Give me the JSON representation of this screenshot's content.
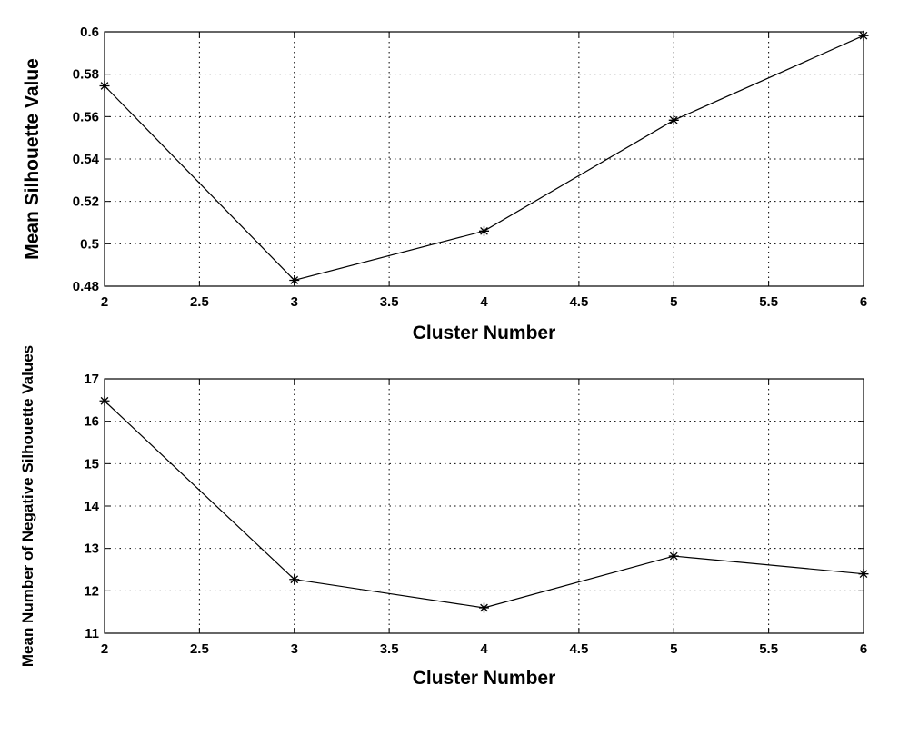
{
  "chart_data": [
    {
      "type": "line",
      "title": "",
      "xlabel": "Cluster Number",
      "ylabel": "Mean Silhouette Value",
      "xlim": [
        2,
        6
      ],
      "ylim": [
        0.48,
        0.6
      ],
      "xticks": [
        2,
        2.5,
        3,
        3.5,
        4,
        4.5,
        5,
        5.5,
        6
      ],
      "xtick_labels": [
        "2",
        "2.5",
        "3",
        "3.5",
        "4",
        "4.5",
        "5",
        "5.5",
        "6"
      ],
      "yticks": [
        0.48,
        0.5,
        0.52,
        0.54,
        0.56,
        0.58,
        0.6
      ],
      "ytick_labels": [
        "0.48",
        "0.5",
        "0.52",
        "0.54",
        "0.56",
        "0.58",
        "0.6"
      ],
      "grid": true,
      "marker": "asterisk",
      "series": [
        {
          "x": [
            2,
            3,
            4,
            5,
            6
          ],
          "values": [
            0.5745,
            0.4828,
            0.506,
            0.5583,
            0.5982
          ]
        }
      ]
    },
    {
      "type": "line",
      "title": "",
      "xlabel": "Cluster Number",
      "ylabel": "Mean Number of Negative Silhouette Values",
      "xlim": [
        2,
        6
      ],
      "ylim": [
        11,
        17
      ],
      "xticks": [
        2,
        2.5,
        3,
        3.5,
        4,
        4.5,
        5,
        5.5,
        6
      ],
      "xtick_labels": [
        "2",
        "2.5",
        "3",
        "3.5",
        "4",
        "4.5",
        "5",
        "5.5",
        "6"
      ],
      "yticks": [
        11,
        12,
        13,
        14,
        15,
        16,
        17
      ],
      "ytick_labels": [
        "11",
        "12",
        "13",
        "14",
        "15",
        "16",
        "17"
      ],
      "grid": true,
      "marker": "asterisk",
      "series": [
        {
          "x": [
            2,
            3,
            4,
            5,
            6
          ],
          "values": [
            16.48,
            12.27,
            11.6,
            12.82,
            12.4
          ]
        }
      ]
    }
  ]
}
